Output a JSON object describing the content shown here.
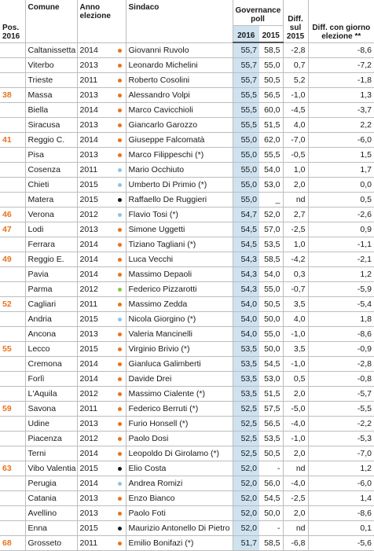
{
  "header": {
    "pos": "Pos. 2016",
    "comune": "Comune",
    "anno": "Anno elezione",
    "sindaco": "Sindaco",
    "poll": "Governance poll",
    "y2016": "2016",
    "y2015": "2015",
    "diff": "Diff. sul 2015",
    "diff_elezione": "Diff. con giorno elezione **"
  },
  "table": {
    "rows": [
      [
        null,
        "Caltanissetta",
        "2014",
        "Giovanni Ruvolo",
        "55,7",
        "58,5",
        "-2,8",
        "-8,6"
      ],
      [
        null,
        "Viterbo",
        "2013",
        "Leonardo Michelini",
        "55,7",
        "55,0",
        "0,7",
        "-7,2"
      ],
      [
        null,
        "Trieste",
        "2011",
        "Roberto Cosolini",
        "55,7",
        "50,5",
        "5,2",
        "-1,8"
      ],
      [
        "38",
        "Massa",
        "2013",
        "Alessandro Volpi",
        "55,5",
        "56,5",
        "-1,0",
        "1,3"
      ],
      [
        null,
        "Biella",
        "2014",
        "Marco Cavicchioli",
        "55,5",
        "60,0",
        "-4,5",
        "-3,7"
      ],
      [
        null,
        "Siracusa",
        "2013",
        "Giancarlo Garozzo",
        "55,5",
        "51,5",
        "4,0",
        "2,2"
      ],
      [
        "41",
        "Reggio C.",
        "2014",
        "Giuseppe Falcomatà",
        "55,0",
        "62,0",
        "-7,0",
        "-6,0"
      ],
      [
        null,
        "Pisa",
        "2013",
        "Marco Filippeschi (*)",
        "55,0",
        "55,5",
        "-0,5",
        "1,5"
      ],
      [
        null,
        "Cosenza",
        "2011",
        "Mario Occhiuto",
        "55,0",
        "54,0",
        "1,0",
        "1,7"
      ],
      [
        null,
        "Chieti",
        "2015",
        "Umberto Di Primio (*)",
        "55,0",
        "53,0",
        "2,0",
        "0,0"
      ],
      [
        null,
        "Matera",
        "2015",
        "Raffaello De Ruggieri",
        "55,0",
        "_",
        "nd",
        "0,5"
      ],
      [
        "46",
        "Verona",
        "2012",
        "Flavio Tosi (*)",
        "54,7",
        "52,0",
        "2,7",
        "-2,6"
      ],
      [
        "47",
        "Lodi",
        "2013",
        "Simone Uggetti",
        "54,5",
        "57,0",
        "-2,5",
        "0,9"
      ],
      [
        null,
        "Ferrara",
        "2014",
        "Tiziano Tagliani (*)",
        "54,5",
        "53,5",
        "1,0",
        "-1,1"
      ],
      [
        "49",
        "Reggio E.",
        "2014",
        "Luca Vecchi",
        "54,3",
        "58,5",
        "-4,2",
        "-2,1"
      ],
      [
        null,
        "Pavia",
        "2014",
        "Massimo Depaoli",
        "54,3",
        "54,0",
        "0,3",
        "1,2"
      ],
      [
        null,
        "Parma",
        "2012",
        "Federico Pizzarotti",
        "54,3",
        "55,0",
        "-0,7",
        "-5,9"
      ],
      [
        "52",
        "Cagliari",
        "2011",
        "Massimo Zedda",
        "54,0",
        "50,5",
        "3,5",
        "-5,4"
      ],
      [
        null,
        "Andria",
        "2015",
        "Nicola Giorgino (*)",
        "54,0",
        "50,0",
        "4,0",
        "1,8"
      ],
      [
        null,
        "Ancona",
        "2013",
        "Valeria Mancinelli",
        "54,0",
        "55,0",
        "-1,0",
        "-8,6"
      ],
      [
        "55",
        "Lecco",
        "2015",
        "Virginio Brivio (*)",
        "53,5",
        "50,0",
        "3,5",
        "-0,9"
      ],
      [
        null,
        "Cremona",
        "2014",
        "Gianluca Galimberti",
        "53,5",
        "54,5",
        "-1,0",
        "-2,8"
      ],
      [
        null,
        "Forlì",
        "2014",
        "Davide Drei",
        "53,5",
        "53,0",
        "0,5",
        "-0,8"
      ],
      [
        null,
        "L'Aquila",
        "2012",
        "Massimo Cialente (*)",
        "53,5",
        "51,5",
        "2,0",
        "-5,7"
      ],
      [
        "59",
        "Savona",
        "2011",
        "Federico Berruti (*)",
        "52,5",
        "57,5",
        "-5,0",
        "-5,5"
      ],
      [
        null,
        "Udine",
        "2013",
        "Furio Honsell (*)",
        "52,5",
        "56,5",
        "-4,0",
        "-2,2"
      ],
      [
        null,
        "Piacenza",
        "2012",
        "Paolo Dosi",
        "52,5",
        "53,5",
        "-1,0",
        "-5,3"
      ],
      [
        null,
        "Terni",
        "2014",
        "Leopoldo Di Girolamo (*)",
        "52,5",
        "50,5",
        "2,0",
        "-7,0"
      ],
      [
        "63",
        "Vibo Valentia",
        "2015",
        "Elio Costa",
        "52,0",
        "-",
        "nd",
        "1,2"
      ],
      [
        null,
        "Perugia",
        "2014",
        "Andrea Romizi",
        "52,0",
        "56,0",
        "-4,0",
        "-6,0"
      ],
      [
        null,
        "Catania",
        "2013",
        "Enzo Bianco",
        "52,0",
        "54,5",
        "-2,5",
        "1,4"
      ],
      [
        null,
        "Avellino",
        "2013",
        "Paolo Foti",
        "52,0",
        "50,0",
        "2,0",
        "-8,6"
      ],
      [
        null,
        "Enna",
        "2015",
        "Maurizio Antonello Di Pietro",
        "52,0",
        "-",
        "nd",
        "0,1"
      ],
      [
        "68",
        "Grosseto",
        "2011",
        "Emilio Bonifazi (*)",
        "51,7",
        "58,5",
        "-6,8",
        "-5,6"
      ]
    ],
    "dot_colors": [
      "#e8731c",
      "#e8731c",
      "#e8731c",
      "#e8731c",
      "#e8731c",
      "#e8731c",
      "#e8731c",
      "#e8731c",
      "#8ec4e6",
      "#8ec4e6",
      "#1a1a1a",
      "#8ec4e6",
      "#e8731c",
      "#e8731c",
      "#e8731c",
      "#e8731c",
      "#8cc63f",
      "#e8731c",
      "#8ec4e6",
      "#e8731c",
      "#e8731c",
      "#e8731c",
      "#e8731c",
      "#e8731c",
      "#e8731c",
      "#e8731c",
      "#e8731c",
      "#e8731c",
      "#1a1a1a",
      "#8ec4e6",
      "#e8731c",
      "#e8731c",
      "#1a1a1a",
      "#e8731c"
    ]
  }
}
